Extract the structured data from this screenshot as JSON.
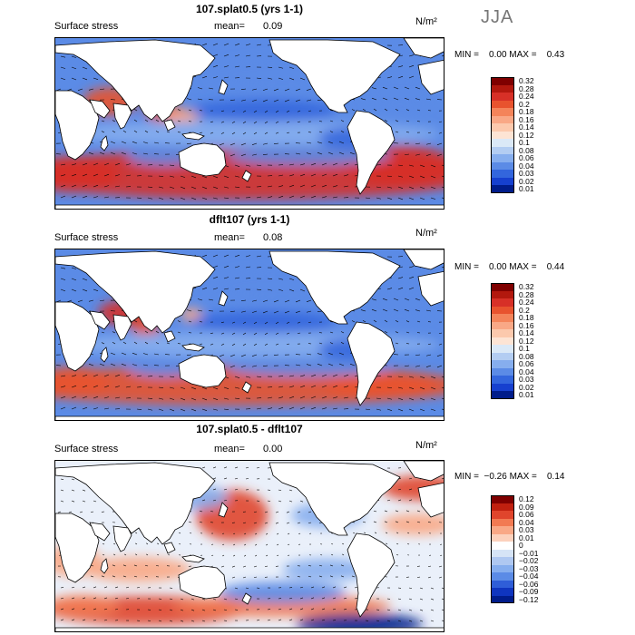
{
  "season": "JJA",
  "panels": [
    {
      "title": "107.splat0.5 (yrs 1-1)",
      "variable": "Surface stress",
      "mean_label": "mean=",
      "mean_value": "0.09",
      "units": "N/m²",
      "minmax": "MIN =    0.00 MAX =    0.43",
      "colorbar": [
        "0.32",
        "0.28",
        "0.24",
        "0.2",
        "0.18",
        "0.16",
        "0.14",
        "0.12",
        "0.1",
        "0.08",
        "0.06",
        "0.04",
        "0.03",
        "0.02",
        "0.01"
      ]
    },
    {
      "title": "dflt107 (yrs 1-1)",
      "variable": "Surface stress",
      "mean_label": "mean=",
      "mean_value": "0.08",
      "units": "N/m²",
      "minmax": "MIN =    0.00 MAX =    0.44",
      "colorbar": [
        "0.32",
        "0.28",
        "0.24",
        "0.2",
        "0.18",
        "0.16",
        "0.14",
        "0.12",
        "0.1",
        "0.08",
        "0.06",
        "0.04",
        "0.03",
        "0.02",
        "0.01"
      ]
    },
    {
      "title": "107.splat0.5 - dflt107",
      "variable": "Surface stress",
      "mean_label": "mean=",
      "mean_value": "0.00",
      "units": "N/m²",
      "minmax": "MIN =  −0.26 MAX =    0.14",
      "colorbar": [
        "0.12",
        "0.09",
        "0.06",
        "0.04",
        "0.03",
        "0.01",
        "0",
        "−0.01",
        "−0.02",
        "−0.03",
        "−0.04",
        "−0.06",
        "−0.09",
        "−0.12"
      ]
    }
  ],
  "colors": {
    "seq": [
      "#7f0000",
      "#b2180e",
      "#d73027",
      "#e8532e",
      "#f4845a",
      "#f9a886",
      "#fcc9ad",
      "#fde4d4",
      "#dbe9f7",
      "#b3cdf2",
      "#86aeee",
      "#5b8be6",
      "#3366dd",
      "#1640cf",
      "#001c8a"
    ],
    "diff": [
      "#7f0000",
      "#c0200f",
      "#e0452c",
      "#f27a52",
      "#f9a886",
      "#fcd1bc",
      "#ffffff",
      "#d6e4f6",
      "#afc8f1",
      "#86aeee",
      "#5b8be6",
      "#2f5ed8",
      "#0f35bf",
      "#001c8a"
    ]
  },
  "chart_data": [
    {
      "type": "heatmap",
      "title": "107.splat0.5 (yrs 1-1)",
      "variable": "Surface stress",
      "units": "N/m²",
      "mean": 0.09,
      "min": 0.0,
      "max": 0.43,
      "colorbar_levels": [
        0.32,
        0.28,
        0.24,
        0.2,
        0.18,
        0.16,
        0.14,
        0.12,
        0.1,
        0.08,
        0.06,
        0.04,
        0.03,
        0.02,
        0.01
      ]
    },
    {
      "type": "heatmap",
      "title": "dflt107 (yrs 1-1)",
      "variable": "Surface stress",
      "units": "N/m²",
      "mean": 0.08,
      "min": 0.0,
      "max": 0.44,
      "colorbar_levels": [
        0.32,
        0.28,
        0.24,
        0.2,
        0.18,
        0.16,
        0.14,
        0.12,
        0.1,
        0.08,
        0.06,
        0.04,
        0.03,
        0.02,
        0.01
      ]
    },
    {
      "type": "heatmap",
      "title": "107.splat0.5 - dflt107",
      "variable": "Surface stress",
      "units": "N/m²",
      "mean": 0.0,
      "min": -0.26,
      "max": 0.14,
      "colorbar_levels": [
        0.12,
        0.09,
        0.06,
        0.04,
        0.03,
        0.01,
        0,
        -0.01,
        -0.02,
        -0.03,
        -0.04,
        -0.06,
        -0.09,
        -0.12
      ]
    }
  ]
}
